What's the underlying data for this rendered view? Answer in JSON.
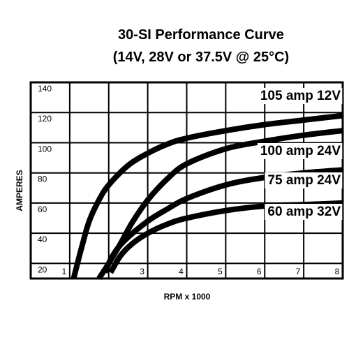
{
  "chart_data": {
    "type": "line",
    "title": "30-SI Performance Curve",
    "subtitle": "(14V, 28V or 37.5V @ 25°C)",
    "xlabel": "RPM x 1000",
    "ylabel": "AMPERES",
    "xlim": [
      1,
      8
    ],
    "ylim": [
      10,
      140
    ],
    "x_ticks": [
      1,
      2,
      3,
      4,
      5,
      6,
      7,
      8
    ],
    "y_ticks": [
      20,
      40,
      60,
      80,
      100,
      120,
      140
    ],
    "grid": true,
    "legend": "inline-labels-right",
    "series": [
      {
        "name": "105 amp 12V",
        "x": [
          1.1,
          1.3,
          1.5,
          1.75,
          2.0,
          2.5,
          3.0,
          3.5,
          4.0,
          5.0,
          6.0,
          7.0,
          8.0
        ],
        "y": [
          10,
          30,
          48,
          62,
          72,
          85,
          93,
          99,
          103,
          108,
          112,
          115,
          118
        ]
      },
      {
        "name": "100 amp 24V",
        "x": [
          1.75,
          2.0,
          2.3,
          2.6,
          3.0,
          3.5,
          4.0,
          5.0,
          6.0,
          7.0,
          8.0
        ],
        "y": [
          10,
          20,
          33,
          47,
          62,
          76,
          86,
          96,
          101,
          105,
          108
        ]
      },
      {
        "name": "75 amp 24V",
        "x": [
          1.9,
          2.1,
          2.4,
          3.0,
          3.5,
          4.0,
          5.0,
          6.0,
          7.0,
          8.0
        ],
        "y": [
          14,
          25,
          35,
          48,
          56,
          63,
          72,
          77,
          80,
          82
        ]
      },
      {
        "name": "60 amp 32V",
        "x": [
          2.05,
          2.3,
          2.6,
          3.0,
          3.5,
          4.0,
          5.0,
          6.0,
          7.0,
          8.0
        ],
        "y": [
          14,
          25,
          33,
          40,
          46,
          50,
          55,
          58,
          59,
          60
        ]
      }
    ]
  }
}
